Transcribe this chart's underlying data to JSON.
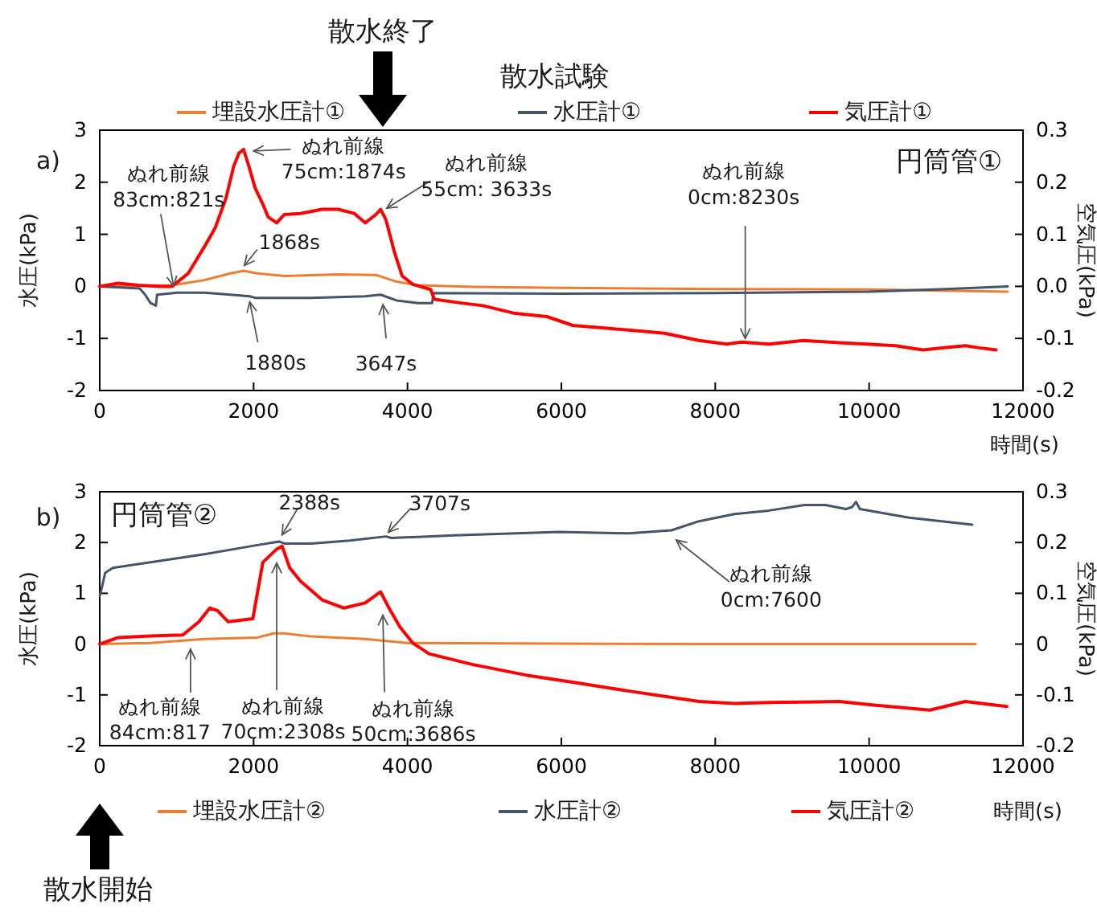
{
  "chart_data": [
    {
      "type": "line",
      "title": "散水試験",
      "xlabel": "時間(s)",
      "ylabel": "水圧(kPa)",
      "y2label": "空気圧(kPa)",
      "xlim": [
        0,
        12000
      ],
      "xticks": [
        0,
        2000,
        4000,
        6000,
        8000,
        10000,
        12000
      ],
      "ylim": [
        -2,
        3
      ],
      "yticks": [
        -2,
        -1,
        0,
        1,
        2,
        3
      ],
      "y2lim": [
        -0.2,
        0.3
      ],
      "y2ticks": [
        -0.2,
        -0.1,
        {
          "value": 0,
          "label": "0.0"
        },
        0.1,
        0.2,
        0.3
      ],
      "legend": "top",
      "series": [
        {
          "name": "埋設水圧計①",
          "color": "#ed7d31",
          "x": [
            0,
            940,
            1360,
            1700,
            1870,
            2050,
            2400,
            3100,
            3590,
            3860,
            4140,
            4840,
            6000,
            8000,
            10000,
            11800
          ],
          "values": [
            0,
            0.02,
            0.12,
            0.25,
            0.3,
            0.25,
            0.2,
            0.23,
            0.22,
            0.09,
            0.02,
            -0.01,
            -0.03,
            -0.05,
            -0.06,
            -0.1
          ]
        },
        {
          "name": "水圧計①",
          "color": "#44546a",
          "x": [
            0,
            520,
            590,
            660,
            730,
            745,
            1010,
            1360,
            1700,
            1950,
            2020,
            2750,
            3450,
            3650,
            3860,
            4140,
            4320,
            4340,
            6000,
            8000,
            10000,
            11000,
            11800
          ],
          "values": [
            0,
            -0.04,
            -0.16,
            -0.32,
            -0.37,
            -0.16,
            -0.12,
            -0.12,
            -0.16,
            -0.19,
            -0.22,
            -0.22,
            -0.19,
            -0.16,
            -0.27,
            -0.32,
            -0.32,
            -0.13,
            -0.14,
            -0.13,
            -0.1,
            -0.05,
            0
          ]
        },
        {
          "name": "気圧計①",
          "color": "#ff0000",
          "axis": "y2",
          "x": [
            0,
            240,
            500,
            800,
            940,
            1150,
            1360,
            1500,
            1640,
            1740,
            1810,
            1870,
            1940,
            2020,
            2120,
            2190,
            2300,
            2400,
            2610,
            2890,
            3100,
            3310,
            3450,
            3590,
            3650,
            3720,
            3830,
            3930,
            4070,
            4300,
            4350,
            4700,
            4980,
            5400,
            5810,
            6150,
            6880,
            7340,
            7790,
            8150,
            8340,
            8700,
            9150,
            9610,
            9970,
            10340,
            10700,
            10970,
            11250,
            11430,
            11650
          ],
          "values": [
            0,
            0.006,
            0.002,
            0,
            0,
            0.025,
            0.076,
            0.112,
            0.169,
            0.23,
            0.256,
            0.263,
            0.23,
            0.189,
            0.158,
            0.133,
            0.122,
            0.138,
            0.14,
            0.148,
            0.148,
            0.14,
            0.122,
            0.138,
            0.148,
            0.128,
            0.066,
            0.02,
            0.004,
            -0.006,
            -0.025,
            -0.032,
            -0.037,
            -0.052,
            -0.058,
            -0.075,
            -0.084,
            -0.09,
            -0.104,
            -0.111,
            -0.107,
            -0.111,
            -0.104,
            -0.108,
            -0.111,
            -0.114,
            -0.122,
            -0.118,
            -0.114,
            -0.118,
            -0.122
          ]
        }
      ],
      "annotations": [
        "a)",
        "円筒管①",
        "散水終了",
        {
          "text": "ぬれ前線\n83cm:821s",
          "x": 960,
          "y": 0
        },
        {
          "text": "ぬれ前線\n75cm:1874s",
          "x": 2000,
          "y": 2.6
        },
        {
          "text": "ぬれ前線\n55cm: 3633s",
          "x": 3730,
          "y": 1.5
        },
        {
          "text": "ぬれ前線\n0cm:8230s",
          "x": 8390,
          "y": -1
        },
        {
          "text": "1868s",
          "x": 1880,
          "y": 0.4
        },
        {
          "text": "1880s",
          "x": 1950,
          "y": -0.3
        },
        {
          "text": "3647s",
          "x": 3680,
          "y": -0.35
        }
      ]
    },
    {
      "type": "line",
      "xlabel": "時間(s)",
      "ylabel": "水圧(kPa)",
      "y2label": "空気圧(kPa)",
      "xlim": [
        0,
        12000
      ],
      "xticks": [
        0,
        2000,
        4000,
        6000,
        8000,
        10000,
        12000
      ],
      "ylim": [
        -2,
        3
      ],
      "yticks": [
        -2,
        -1,
        0,
        1,
        2,
        3
      ],
      "y2lim": [
        -0.2,
        0.3
      ],
      "y2ticks": [
        -0.2,
        -0.1,
        0,
        0.1,
        0.2,
        0.3
      ],
      "legend": "bottom",
      "series": [
        {
          "name": "埋設水圧計②",
          "color": "#ed7d31",
          "x": [
            0,
            660,
            1360,
            2050,
            2260,
            2400,
            2750,
            3450,
            4000,
            6000,
            8000,
            10000,
            11380
          ],
          "values": [
            0,
            0.02,
            0.1,
            0.13,
            0.21,
            0.21,
            0.15,
            0.1,
            0.02,
            0.01,
            0,
            0,
            0
          ]
        },
        {
          "name": "水圧計②",
          "color": "#44546a",
          "x": [
            0,
            15,
            70,
            170,
            660,
            1360,
            2050,
            2330,
            2400,
            2750,
            3250,
            3720,
            3790,
            4610,
            5970,
            6880,
            7430,
            7790,
            8250,
            8700,
            9160,
            9430,
            9700,
            9780,
            9830,
            9880,
            10520,
            11340
          ],
          "values": [
            0.95,
            1.03,
            1.4,
            1.5,
            1.61,
            1.77,
            1.95,
            2.02,
            1.98,
            1.98,
            2.04,
            2.12,
            2.09,
            2.14,
            2.21,
            2.18,
            2.24,
            2.42,
            2.56,
            2.63,
            2.74,
            2.74,
            2.66,
            2.7,
            2.8,
            2.66,
            2.49,
            2.35
          ]
        },
        {
          "name": "気圧計②",
          "color": "#ff0000",
          "axis": "y2",
          "x": [
            0,
            240,
            660,
            1080,
            1290,
            1430,
            1530,
            1670,
            1990,
            2120,
            2300,
            2370,
            2470,
            2610,
            2890,
            3170,
            3450,
            3650,
            3760,
            3900,
            4070,
            4280,
            4840,
            5540,
            6230,
            6900,
            7790,
            8250,
            8700,
            9610,
            10060,
            10790,
            11250,
            11790
          ],
          "values": [
            0,
            0.013,
            0.016,
            0.018,
            0.044,
            0.071,
            0.066,
            0.044,
            0.05,
            0.161,
            0.187,
            0.193,
            0.15,
            0.124,
            0.087,
            0.071,
            0.081,
            0.103,
            0.071,
            0.034,
            0.002,
            -0.019,
            -0.04,
            -0.061,
            -0.077,
            -0.093,
            -0.113,
            -0.117,
            -0.115,
            -0.113,
            -0.12,
            -0.13,
            -0.113,
            -0.123
          ]
        }
      ],
      "annotations": [
        "b)",
        "円筒管②",
        {
          "text": "2388s",
          "x": 2370,
          "y": 2.15
        },
        {
          "text": "3707s",
          "x": 3750,
          "y": 2.2
        },
        {
          "text": "ぬれ前線\n0cm:7600",
          "x": 7430,
          "y": 2.24
        },
        {
          "text": "ぬれ前線\n84cm:817",
          "x": 1180,
          "y": -0.1
        },
        {
          "text": "ぬれ前線\n70cm:2308s",
          "x": 2300,
          "y": 1.85
        },
        {
          "text": "ぬれ前線\n50cm:3686s",
          "x": 3680,
          "y": 0.57
        },
        "散水開始"
      ]
    }
  ]
}
